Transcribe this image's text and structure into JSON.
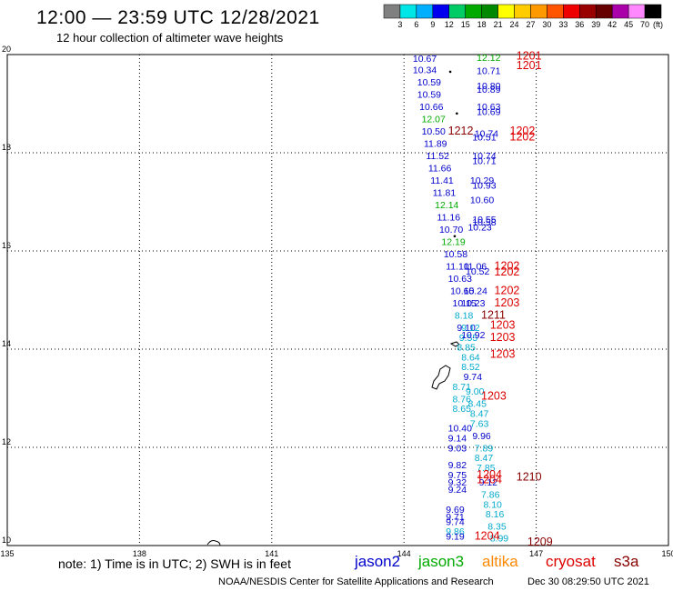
{
  "header": {
    "title": "12:00 — 23:59 UTC 12/28/2021",
    "subtitle": "12 hour collection of altimeter wave heights"
  },
  "footer": {
    "note": "note:  1) Time is in UTC;  2) SWH is in feet",
    "credit": "NOAA/NESDIS Center for Satellite Applications and Research",
    "date": "Dec 30 08:29:50 UTC 2021"
  },
  "satellites": [
    {
      "name": "jason2",
      "color": "#0000cc"
    },
    {
      "name": "jason3",
      "color": "#00aa00"
    },
    {
      "name": "altika",
      "color": "#ff8800"
    },
    {
      "name": "cryosat",
      "color": "#dd0000"
    },
    {
      "name": "s3a",
      "color": "#880000"
    }
  ],
  "colorbar": {
    "unit": "(ft)",
    "ticks": [
      "3",
      "6",
      "9",
      "12",
      "15",
      "18",
      "21",
      "24",
      "27",
      "30",
      "33",
      "36",
      "39",
      "42",
      "45",
      "70"
    ],
    "colors": [
      "#808080",
      "#00e5e5",
      "#00b0ff",
      "#0000ee",
      "#00cc66",
      "#00aa00",
      "#008800",
      "#ffff00",
      "#ffcc00",
      "#ff9900",
      "#ff5500",
      "#ee0000",
      "#990000",
      "#660000",
      "#aa00aa",
      "#ff88ff",
      "#000000"
    ]
  },
  "chart_data": {
    "type": "scatter",
    "title": "12:00 — 23:59 UTC 12/28/2021",
    "subtitle": "12 hour collection of altimeter wave heights",
    "xlim": [
      135,
      150
    ],
    "ylim": [
      10,
      20
    ],
    "x_ticks": [
      "135",
      "138",
      "141",
      "144",
      "147",
      "150"
    ],
    "y_ticks": [
      "10",
      "12",
      "14",
      "16",
      "18",
      "20"
    ],
    "grid": true,
    "points": [
      {
        "x": 144.2,
        "y": 19.85,
        "label": "10.67",
        "color": "#0000cc"
      },
      {
        "x": 144.2,
        "y": 19.62,
        "label": "10.34",
        "color": "#0000cc"
      },
      {
        "x": 144.3,
        "y": 19.37,
        "label": "10.59",
        "color": "#0000cc"
      },
      {
        "x": 144.3,
        "y": 19.12,
        "label": "10.59",
        "color": "#0000cc"
      },
      {
        "x": 144.35,
        "y": 18.87,
        "label": "10.66",
        "color": "#0000cc"
      },
      {
        "x": 144.4,
        "y": 18.62,
        "label": "12.07",
        "color": "#00aa00"
      },
      {
        "x": 144.4,
        "y": 18.37,
        "label": "10.50",
        "color": "#0000cc"
      },
      {
        "x": 144.45,
        "y": 18.12,
        "label": "11.89",
        "color": "#0000cc"
      },
      {
        "x": 144.5,
        "y": 17.87,
        "label": "11.52",
        "color": "#0000cc"
      },
      {
        "x": 144.55,
        "y": 17.62,
        "label": "11.66",
        "color": "#0000cc"
      },
      {
        "x": 144.6,
        "y": 17.37,
        "label": "11.41",
        "color": "#0000cc"
      },
      {
        "x": 144.65,
        "y": 17.12,
        "label": "11.81",
        "color": "#0000cc"
      },
      {
        "x": 144.7,
        "y": 16.87,
        "label": "12.14",
        "color": "#00aa00"
      },
      {
        "x": 144.75,
        "y": 16.62,
        "label": "11.16",
        "color": "#0000cc"
      },
      {
        "x": 144.8,
        "y": 16.37,
        "label": "10.70",
        "color": "#0000cc"
      },
      {
        "x": 144.85,
        "y": 16.12,
        "label": "12.19",
        "color": "#00aa00"
      },
      {
        "x": 144.9,
        "y": 15.87,
        "label": "10.58",
        "color": "#0000cc"
      },
      {
        "x": 144.95,
        "y": 15.62,
        "label": "11.10",
        "color": "#0000cc"
      },
      {
        "x": 145.0,
        "y": 15.37,
        "label": "10.63",
        "color": "#0000cc"
      },
      {
        "x": 145.05,
        "y": 15.12,
        "label": "10.65",
        "color": "#0000cc"
      },
      {
        "x": 145.1,
        "y": 14.87,
        "label": "10.15",
        "color": "#0000cc"
      },
      {
        "x": 145.15,
        "y": 14.62,
        "label": "8.18",
        "color": "#00aacc"
      },
      {
        "x": 145.2,
        "y": 14.37,
        "label": "9.10",
        "color": "#0000cc"
      },
      {
        "x": 145.25,
        "y": 14.17,
        "label": "9.55",
        "color": "#00aacc"
      },
      {
        "x": 145.2,
        "y": 13.97,
        "label": "8.85",
        "color": "#00aacc"
      },
      {
        "x": 145.3,
        "y": 13.77,
        "label": "8.64",
        "color": "#00aacc"
      },
      {
        "x": 145.3,
        "y": 13.57,
        "label": "8.52",
        "color": "#00aacc"
      },
      {
        "x": 145.35,
        "y": 13.37,
        "label": "9.74",
        "color": "#0000cc"
      },
      {
        "x": 145.1,
        "y": 13.17,
        "label": "8.71",
        "color": "#00aacc"
      },
      {
        "x": 145.4,
        "y": 13.07,
        "label": "9.00",
        "color": "#00aacc"
      },
      {
        "x": 145.1,
        "y": 12.92,
        "label": "8.76",
        "color": "#00aacc"
      },
      {
        "x": 145.45,
        "y": 12.82,
        "label": "8.45",
        "color": "#00aacc"
      },
      {
        "x": 145.1,
        "y": 12.72,
        "label": "8.65",
        "color": "#00aacc"
      },
      {
        "x": 145.5,
        "y": 12.62,
        "label": "8.47",
        "color": "#00aacc"
      },
      {
        "x": 145.5,
        "y": 12.42,
        "label": "7.63",
        "color": "#00aacc"
      },
      {
        "x": 145.0,
        "y": 12.32,
        "label": "10.40",
        "color": "#0000cc"
      },
      {
        "x": 145.55,
        "y": 12.17,
        "label": "9.96",
        "color": "#0000cc"
      },
      {
        "x": 145.0,
        "y": 12.12,
        "label": "9.14",
        "color": "#0000cc"
      },
      {
        "x": 145.6,
        "y": 11.92,
        "label": "7.89",
        "color": "#00aacc"
      },
      {
        "x": 145.0,
        "y": 11.92,
        "label": "9.03",
        "color": "#0000cc"
      },
      {
        "x": 145.6,
        "y": 11.72,
        "label": "8.47",
        "color": "#00aacc"
      },
      {
        "x": 145.0,
        "y": 11.57,
        "label": "9.82",
        "color": "#0000cc"
      },
      {
        "x": 145.65,
        "y": 11.52,
        "label": "7.85",
        "color": "#00aacc"
      },
      {
        "x": 145.0,
        "y": 11.37,
        "label": "9.75",
        "color": "#0000cc"
      },
      {
        "x": 145.0,
        "y": 11.22,
        "label": "9.32",
        "color": "#0000cc"
      },
      {
        "x": 145.7,
        "y": 11.22,
        "label": "9.12",
        "color": "#0000cc"
      },
      {
        "x": 145.0,
        "y": 11.07,
        "label": "9.24",
        "color": "#0000cc"
      },
      {
        "x": 145.75,
        "y": 10.97,
        "label": "7.86",
        "color": "#00aacc"
      },
      {
        "x": 145.8,
        "y": 10.77,
        "label": "8.10",
        "color": "#00aacc"
      },
      {
        "x": 144.95,
        "y": 10.67,
        "label": "9.69",
        "color": "#0000cc"
      },
      {
        "x": 145.85,
        "y": 10.57,
        "label": "8.16",
        "color": "#00aacc"
      },
      {
        "x": 144.95,
        "y": 10.52,
        "label": "9.71",
        "color": "#0000cc"
      },
      {
        "x": 144.95,
        "y": 10.42,
        "label": "9.74",
        "color": "#0000cc"
      },
      {
        "x": 145.9,
        "y": 10.32,
        "label": "8.35",
        "color": "#00aacc"
      },
      {
        "x": 144.95,
        "y": 10.22,
        "label": "9.86",
        "color": "#00aacc"
      },
      {
        "x": 144.95,
        "y": 10.12,
        "label": "9.19",
        "color": "#0000cc"
      },
      {
        "x": 145.95,
        "y": 10.08,
        "label": "8.99",
        "color": "#00aacc"
      },
      {
        "x": 145.65,
        "y": 19.87,
        "label": "12.12",
        "color": "#00aa00"
      },
      {
        "x": 145.65,
        "y": 19.6,
        "label": "10.71",
        "color": "#0000cc"
      },
      {
        "x": 145.65,
        "y": 19.3,
        "label": "10.80",
        "color": "#0000cc"
      },
      {
        "x": 145.65,
        "y": 19.22,
        "label": "10.89",
        "color": "#0000cc"
      },
      {
        "x": 145.65,
        "y": 18.87,
        "label": "10.63",
        "color": "#0000cc"
      },
      {
        "x": 145.65,
        "y": 18.77,
        "label": "10.69",
        "color": "#0000cc"
      },
      {
        "x": 145.6,
        "y": 18.32,
        "label": "10.74",
        "color": "#0000cc"
      },
      {
        "x": 145.55,
        "y": 18.25,
        "label": "10.51",
        "color": "#0000cc"
      },
      {
        "x": 145.55,
        "y": 17.87,
        "label": "10.74",
        "color": "#0000cc"
      },
      {
        "x": 145.55,
        "y": 17.77,
        "label": "10.71",
        "color": "#0000cc"
      },
      {
        "x": 145.5,
        "y": 17.37,
        "label": "10.29",
        "color": "#0000cc"
      },
      {
        "x": 145.55,
        "y": 17.27,
        "label": "10.93",
        "color": "#0000cc"
      },
      {
        "x": 145.5,
        "y": 16.97,
        "label": "10.60",
        "color": "#0000cc"
      },
      {
        "x": 145.55,
        "y": 16.57,
        "label": "10.55",
        "color": "#0000cc"
      },
      {
        "x": 145.55,
        "y": 16.52,
        "label": "10.58",
        "color": "#0000cc"
      },
      {
        "x": 145.45,
        "y": 16.42,
        "label": "10.23",
        "color": "#0000cc"
      },
      {
        "x": 145.35,
        "y": 15.62,
        "label": "11.06",
        "color": "#0000cc"
      },
      {
        "x": 145.4,
        "y": 15.52,
        "label": "10.52",
        "color": "#0000cc"
      },
      {
        "x": 145.35,
        "y": 15.12,
        "label": "10.24",
        "color": "#0000cc"
      },
      {
        "x": 145.3,
        "y": 14.87,
        "label": "10.23",
        "color": "#0000cc"
      },
      {
        "x": 145.3,
        "y": 14.37,
        "label": "9.12",
        "color": "#00aacc"
      },
      {
        "x": 145.3,
        "y": 14.22,
        "label": "10.92",
        "color": "#0000cc"
      }
    ],
    "time_labels": [
      {
        "x": 146.55,
        "y": 19.9,
        "label": "1201",
        "color": "#dd0000"
      },
      {
        "x": 146.55,
        "y": 19.7,
        "label": "1201",
        "color": "#dd0000"
      },
      {
        "x": 145.0,
        "y": 18.37,
        "label": "1212",
        "color": "#880000"
      },
      {
        "x": 146.4,
        "y": 18.37,
        "label": "1202",
        "color": "#dd0000"
      },
      {
        "x": 146.4,
        "y": 18.25,
        "label": "1202",
        "color": "#dd0000"
      },
      {
        "x": 146.05,
        "y": 15.62,
        "label": "1202",
        "color": "#dd0000"
      },
      {
        "x": 146.05,
        "y": 15.5,
        "label": "1202",
        "color": "#dd0000"
      },
      {
        "x": 146.05,
        "y": 15.12,
        "label": "1202",
        "color": "#dd0000"
      },
      {
        "x": 146.05,
        "y": 14.87,
        "label": "1203",
        "color": "#dd0000"
      },
      {
        "x": 145.75,
        "y": 14.62,
        "label": "1211",
        "color": "#880000"
      },
      {
        "x": 145.95,
        "y": 14.42,
        "label": "1203",
        "color": "#dd0000"
      },
      {
        "x": 145.95,
        "y": 14.17,
        "label": "1203",
        "color": "#dd0000"
      },
      {
        "x": 145.95,
        "y": 13.82,
        "label": "1203",
        "color": "#dd0000"
      },
      {
        "x": 145.75,
        "y": 12.97,
        "label": "1203",
        "color": "#dd0000"
      },
      {
        "x": 145.65,
        "y": 11.37,
        "label": "1204",
        "color": "#dd0000"
      },
      {
        "x": 145.65,
        "y": 11.27,
        "label": "1204",
        "color": "#dd0000"
      },
      {
        "x": 146.55,
        "y": 11.32,
        "label": "1210",
        "color": "#880000"
      },
      {
        "x": 145.6,
        "y": 10.12,
        "label": "1204",
        "color": "#dd0000"
      },
      {
        "x": 146.8,
        "y": 10.0,
        "label": "1209",
        "color": "#880000"
      }
    ],
    "track_dots": [
      {
        "x": 145.05,
        "y": 19.65
      },
      {
        "x": 145.2,
        "y": 18.8
      },
      {
        "x": 145.15,
        "y": 16.3
      }
    ]
  }
}
